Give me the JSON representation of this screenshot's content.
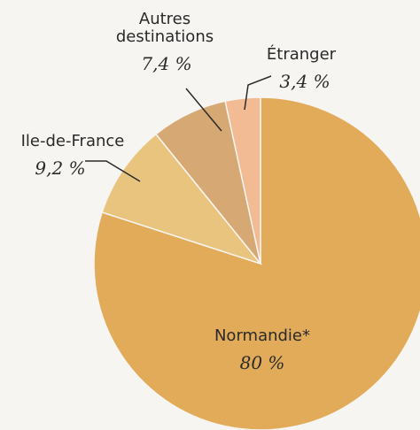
{
  "chart_data": {
    "type": "pie",
    "categories": [
      "Normandie*",
      "Ile-de-France",
      "Autres destinations",
      "Étranger"
    ],
    "values": [
      80,
      9.2,
      7.4,
      3.4
    ],
    "value_labels": [
      "80 %",
      "9,2 %",
      "7,4 %",
      "3,4 %"
    ],
    "colors": [
      "#e2ab5a",
      "#e8c47f",
      "#d6a874",
      "#f2bb94"
    ]
  }
}
